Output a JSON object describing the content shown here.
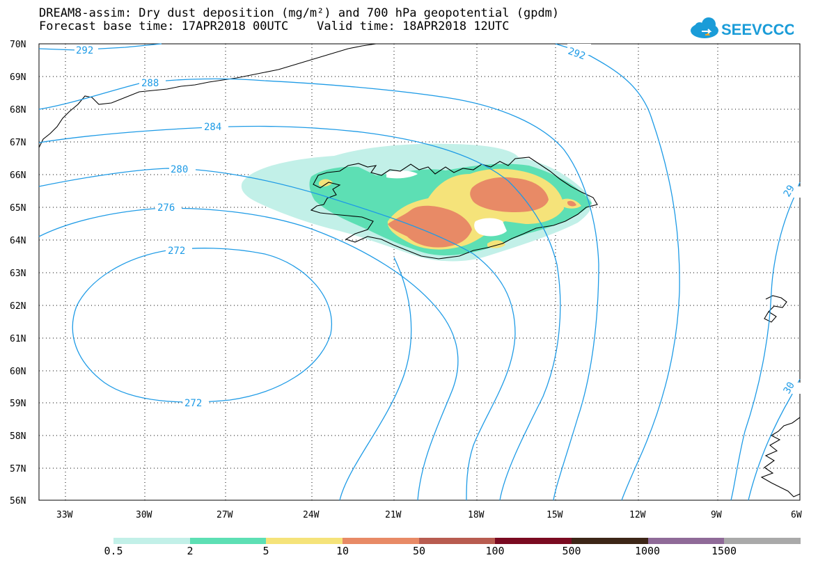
{
  "title": {
    "line1": "DREAM8-assim: Dry dust deposition (mg/m²) and 700 hPa geopotential (gpdm)",
    "line2": "Forecast base time: 17APR2018 00UTC    Valid time: 18APR2018 12UTC"
  },
  "logo": {
    "text": "SEEVCCC",
    "color": "#1a9cd8"
  },
  "axes": {
    "y_ticks": [
      "70N",
      "69N",
      "68N",
      "67N",
      "66N",
      "65N",
      "64N",
      "63N",
      "62N",
      "61N",
      "60N",
      "59N",
      "58N",
      "57N",
      "56N"
    ],
    "x_ticks": [
      "33W",
      "30W",
      "27W",
      "24W",
      "21W",
      "18W",
      "15W",
      "12W",
      "9W",
      "6W"
    ]
  },
  "contour_labels": [
    "292",
    "292",
    "288",
    "284",
    "280",
    "276",
    "272",
    "272",
    "29",
    "30"
  ],
  "legend": {
    "colors": [
      "#c2f0e8",
      "#5ddfb4",
      "#f5e37a",
      "#e88a66",
      "#b85c50",
      "#7a0a21",
      "#3d2617",
      "#8f6a98",
      "#a9a9a9"
    ],
    "labels": [
      "0.5",
      "2",
      "5",
      "10",
      "50",
      "100",
      "500",
      "1000",
      "1500"
    ]
  },
  "colors": {
    "contour": "#1e9be6",
    "coast": "#000000"
  }
}
